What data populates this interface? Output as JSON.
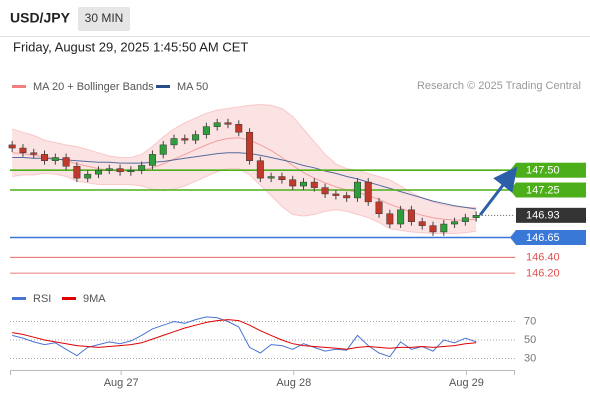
{
  "chart_data": {
    "type": "candlestick",
    "symbol": "USD/JPY",
    "timeframe": "30 MIN",
    "datetime": "Friday, August 29, 2025 1:45:50 AM CET",
    "credit": "Research © 2025 Trading Central",
    "up_color": "#2e9e3a",
    "down_color": "#c0392b",
    "xlim": [
      -0.2,
      46.6
    ],
    "xticks": [
      {
        "value": 10.1,
        "label": "Aug 27"
      },
      {
        "value": 26.1,
        "label": "Aug 28"
      },
      {
        "value": 42.1,
        "label": "Aug 29"
      }
    ],
    "ylim": [
      146.05,
      148.45
    ],
    "open": [
      147.82,
      147.78,
      147.72,
      147.7,
      147.62,
      147.66,
      147.55,
      147.4,
      147.45,
      147.5,
      147.52,
      147.48,
      147.5,
      147.56,
      147.7,
      147.82,
      147.9,
      147.88,
      147.95,
      148.05,
      148.1,
      148.08,
      147.98,
      147.62,
      147.4,
      147.42,
      147.38,
      147.3,
      147.35,
      147.28,
      147.2,
      147.18,
      147.15,
      147.35,
      147.1,
      146.95,
      146.82,
      147.0,
      146.85,
      146.8,
      146.72,
      146.82,
      146.85,
      146.9
    ],
    "high": [
      147.87,
      147.83,
      147.77,
      147.75,
      147.71,
      147.71,
      147.6,
      147.5,
      147.55,
      147.57,
      147.57,
      147.55,
      147.61,
      147.75,
      147.87,
      147.95,
      147.95,
      148.0,
      148.1,
      148.15,
      148.15,
      148.13,
      148.03,
      147.67,
      147.47,
      147.47,
      147.43,
      147.4,
      147.4,
      147.33,
      147.25,
      147.23,
      147.4,
      147.4,
      147.15,
      147.0,
      147.05,
      147.05,
      146.9,
      146.85,
      146.87,
      146.9,
      146.95,
      146.98
    ],
    "low": [
      147.73,
      147.67,
      147.65,
      147.57,
      147.57,
      147.5,
      147.35,
      147.35,
      147.4,
      147.45,
      147.43,
      147.43,
      147.45,
      147.51,
      147.65,
      147.77,
      147.83,
      147.83,
      147.9,
      148.0,
      148.03,
      147.93,
      147.57,
      147.35,
      147.35,
      147.33,
      147.25,
      147.25,
      147.23,
      147.15,
      147.13,
      147.1,
      147.1,
      147.05,
      146.9,
      146.77,
      146.77,
      146.8,
      146.75,
      146.67,
      146.67,
      146.77,
      146.8,
      146.85
    ],
    "close": [
      147.78,
      147.72,
      147.7,
      147.62,
      147.66,
      147.55,
      147.4,
      147.45,
      147.5,
      147.52,
      147.48,
      147.5,
      147.56,
      147.7,
      147.82,
      147.9,
      147.88,
      147.95,
      148.05,
      148.1,
      148.08,
      147.98,
      147.62,
      147.4,
      147.42,
      147.38,
      147.3,
      147.35,
      147.28,
      147.2,
      147.18,
      147.15,
      147.35,
      147.1,
      146.95,
      146.82,
      147.0,
      146.85,
      146.8,
      146.72,
      146.82,
      146.85,
      146.9,
      146.93
    ],
    "overlays": [
      {
        "name": "MA 20 + Bollinger Bands",
        "color": "#f08080",
        "values": [
          147.72,
          147.71,
          147.69,
          147.67,
          147.65,
          147.62,
          147.58,
          147.55,
          147.52,
          147.5,
          147.49,
          147.49,
          147.5,
          147.53,
          147.58,
          147.64,
          147.7,
          147.76,
          147.82,
          147.87,
          147.9,
          147.91,
          147.88,
          147.82,
          147.75,
          147.66,
          147.56,
          147.47,
          147.4,
          147.34,
          147.29,
          147.25,
          147.22,
          147.18,
          147.13,
          147.07,
          147.02,
          146.97,
          146.93,
          146.9,
          146.88,
          146.87,
          146.87,
          146.88
        ],
        "upper": [
          148.02,
          147.98,
          147.94,
          147.88,
          147.85,
          147.82,
          147.8,
          147.76,
          147.72,
          147.68,
          147.66,
          147.66,
          147.7,
          147.8,
          147.92,
          148.02,
          148.1,
          148.16,
          148.22,
          148.26,
          148.28,
          148.3,
          148.32,
          148.33,
          148.32,
          148.28,
          148.18,
          148.02,
          147.86,
          147.7,
          147.58,
          147.52,
          147.5,
          147.46,
          147.42,
          147.38,
          147.3,
          147.22,
          147.15,
          147.1,
          147.06,
          147.04,
          147.03,
          147.03
        ],
        "lower": [
          147.42,
          147.44,
          147.44,
          147.46,
          147.45,
          147.42,
          147.36,
          147.34,
          147.32,
          147.32,
          147.32,
          147.32,
          147.3,
          147.26,
          147.24,
          147.26,
          147.3,
          147.36,
          147.42,
          147.48,
          147.52,
          147.52,
          147.44,
          147.31,
          147.18,
          147.04,
          146.94,
          146.92,
          146.94,
          146.98,
          147.0,
          146.98,
          146.94,
          146.9,
          146.84,
          146.76,
          146.74,
          146.72,
          146.71,
          146.7,
          146.7,
          146.7,
          146.71,
          146.73
        ]
      },
      {
        "name": "MA 50",
        "color": "#2b4c8c",
        "values": [
          147.66,
          147.66,
          147.65,
          147.65,
          147.64,
          147.63,
          147.62,
          147.61,
          147.6,
          147.6,
          147.59,
          147.59,
          147.59,
          147.6,
          147.61,
          147.63,
          147.65,
          147.67,
          147.69,
          147.71,
          147.72,
          147.72,
          147.71,
          147.69,
          147.66,
          147.63,
          147.6,
          147.56,
          147.53,
          147.49,
          147.46,
          147.42,
          147.39,
          147.35,
          147.31,
          147.27,
          147.23,
          147.19,
          147.15,
          147.11,
          147.08,
          147.05,
          147.03,
          147.01
        ]
      }
    ],
    "levels": [
      {
        "value": 147.5,
        "label": "147.50",
        "color": "#4caf1a",
        "boxed": true
      },
      {
        "value": 147.25,
        "label": "147.25",
        "color": "#4caf1a",
        "boxed": true
      },
      {
        "value": 146.93,
        "label": "146.93",
        "color": "#333333",
        "boxed": true,
        "current": true
      },
      {
        "value": 146.65,
        "label": "146.65",
        "color": "#3a78d8",
        "boxed": true
      },
      {
        "value": 146.4,
        "label": "146.40",
        "color": "#e05050",
        "boxed": false
      },
      {
        "value": 146.2,
        "label": "146.20",
        "color": "#e05050",
        "boxed": false
      }
    ],
    "rsi": {
      "ylim": [
        17.6,
        87.8
      ],
      "yticks": [
        30,
        50,
        70
      ],
      "series": [
        {
          "name": "RSI",
          "color": "#4a74d4",
          "values": [
            55,
            52,
            48,
            45,
            47,
            40,
            33,
            42,
            45,
            48,
            46,
            49,
            55,
            62,
            66,
            70,
            68,
            72,
            75,
            74,
            70,
            64,
            42,
            36,
            45,
            44,
            40,
            46,
            42,
            38,
            40,
            39,
            55,
            44,
            36,
            32,
            48,
            40,
            43,
            38,
            50,
            47,
            52,
            48
          ]
        },
        {
          "name": "9MA",
          "color": "#e00000",
          "values": [
            58,
            56,
            53,
            50,
            48,
            46,
            44,
            43,
            42,
            43,
            44,
            45,
            47,
            51,
            55,
            59,
            63,
            66,
            69,
            71,
            72,
            71,
            66,
            60,
            55,
            50,
            46,
            44,
            43,
            42,
            41,
            40,
            42,
            43,
            42,
            41,
            42,
            42,
            43,
            42,
            43,
            44,
            46,
            47
          ]
        }
      ]
    }
  }
}
